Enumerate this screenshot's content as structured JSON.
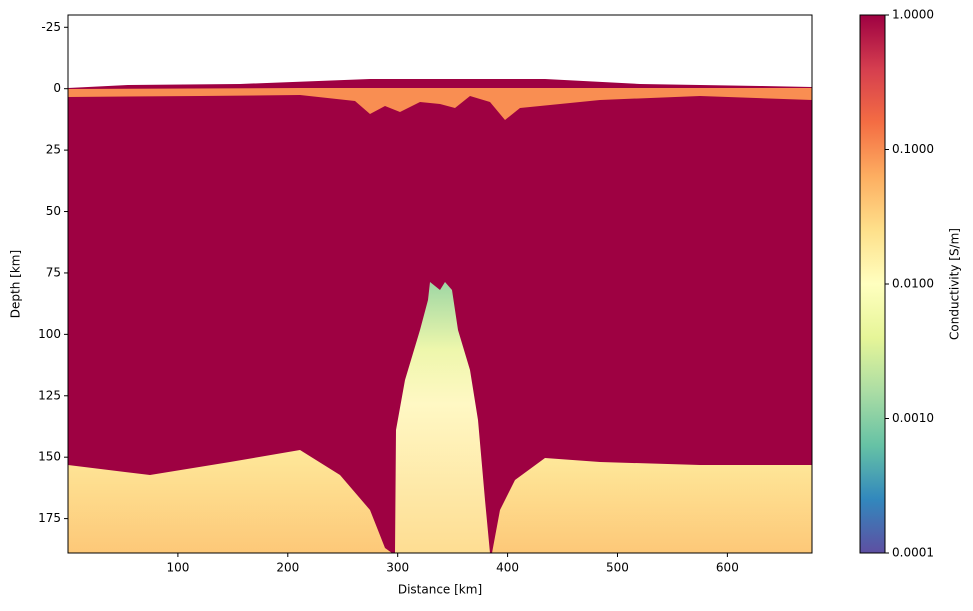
{
  "chart_data": {
    "type": "heatmap",
    "xlabel": "Distance [km]",
    "ylabel": "Depth [km]",
    "xlim": [
      0,
      677
    ],
    "xticks": [
      100,
      200,
      300,
      400,
      500,
      600
    ],
    "ylim": [
      -30,
      189
    ],
    "y_inverted": true,
    "yticks": [
      -25,
      0,
      25,
      50,
      75,
      100,
      125,
      150,
      175
    ],
    "colorbar": {
      "label": "Conductivity [S/m]",
      "scale": "log",
      "lim": [
        0.0001,
        1
      ],
      "colormap": "Spectral_r",
      "ticks": [
        {
          "value": 0.0001,
          "label": "0.0001"
        },
        {
          "value": 0.001,
          "label": "0.0010"
        },
        {
          "value": 0.01,
          "label": "0.0100"
        },
        {
          "value": 0.1,
          "label": "0.1000"
        },
        {
          "value": 1,
          "label": "1.0000"
        }
      ]
    }
  }
}
